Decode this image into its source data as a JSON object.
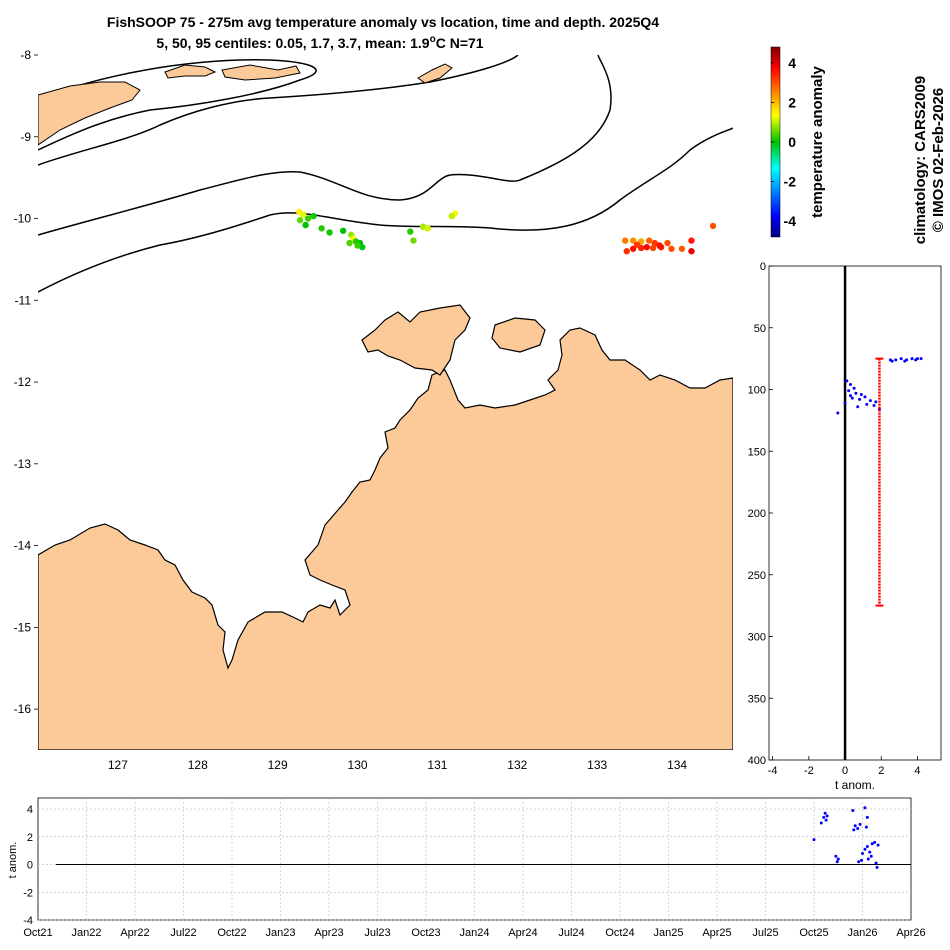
{
  "title_line1": "FishSOOP 75 - 275m avg temperature anomaly vs location, time and depth. 2025Q4",
  "title_line2_prefix": "5, 50, 95 centiles: 0.05, 1.7, 3.7, mean: 1.9",
  "title_line2_sup": "o",
  "title_line2_suffix": "C N=71",
  "side_text_1": "climatology: CARS2009",
  "side_text_2": "© IMOS 02-Feb-2026",
  "colorbar": {
    "label": "temperature anomaly",
    "ticks": [
      "4",
      "2",
      "0",
      "-2",
      "-4"
    ],
    "range": [
      -4.8,
      4.8
    ]
  },
  "map": {
    "lon_range": [
      126.0,
      134.7
    ],
    "lat_range": [
      -16.5,
      -8.0
    ],
    "lon_ticks": [
      "127",
      "128",
      "129",
      "130",
      "131",
      "132",
      "133",
      "134"
    ],
    "lat_ticks": [
      "-8",
      "-9",
      "-10",
      "-11",
      "-12",
      "-13",
      "-14",
      "-15",
      "-16"
    ],
    "land_color": "#fbca98",
    "points": [
      {
        "lon": 129.27,
        "lat": -9.92,
        "anom": 1.5
      },
      {
        "lon": 129.32,
        "lat": -9.95,
        "anom": 1.2
      },
      {
        "lon": 129.38,
        "lat": -10.0,
        "anom": 0.3
      },
      {
        "lon": 129.28,
        "lat": -10.02,
        "anom": 0.5
      },
      {
        "lon": 129.45,
        "lat": -9.97,
        "anom": 0.1
      },
      {
        "lon": 129.35,
        "lat": -10.08,
        "anom": 0.0
      },
      {
        "lon": 129.55,
        "lat": -10.12,
        "anom": 0.2
      },
      {
        "lon": 129.65,
        "lat": -10.17,
        "anom": 0.1
      },
      {
        "lon": 129.82,
        "lat": -10.15,
        "anom": 0.0
      },
      {
        "lon": 129.92,
        "lat": -10.2,
        "anom": 0.8
      },
      {
        "lon": 129.95,
        "lat": -10.25,
        "anom": 1.3
      },
      {
        "lon": 129.98,
        "lat": -10.28,
        "anom": 0.2
      },
      {
        "lon": 130.03,
        "lat": -10.3,
        "anom": 0.0
      },
      {
        "lon": 129.9,
        "lat": -10.3,
        "anom": 0.4
      },
      {
        "lon": 130.06,
        "lat": -10.35,
        "anom": -0.1
      },
      {
        "lon": 130.0,
        "lat": -10.33,
        "anom": 0.3
      },
      {
        "lon": 130.66,
        "lat": -10.16,
        "anom": 0.2
      },
      {
        "lon": 130.82,
        "lat": -10.1,
        "anom": 0.9
      },
      {
        "lon": 130.88,
        "lat": -10.12,
        "anom": 1.1
      },
      {
        "lon": 130.7,
        "lat": -10.27,
        "anom": 0.6
      },
      {
        "lon": 131.22,
        "lat": -9.94,
        "anom": 1.3
      },
      {
        "lon": 131.18,
        "lat": -9.97,
        "anom": 1.0
      },
      {
        "lon": 133.35,
        "lat": -10.27,
        "anom": 2.6
      },
      {
        "lon": 133.45,
        "lat": -10.27,
        "anom": 2.4
      },
      {
        "lon": 133.55,
        "lat": -10.28,
        "anom": 2.2
      },
      {
        "lon": 133.65,
        "lat": -10.27,
        "anom": 2.8
      },
      {
        "lon": 133.72,
        "lat": -10.3,
        "anom": 3.2
      },
      {
        "lon": 133.88,
        "lat": -10.3,
        "anom": 3.0
      },
      {
        "lon": 134.18,
        "lat": -10.27,
        "anom": 3.5
      },
      {
        "lon": 134.45,
        "lat": -10.09,
        "anom": 3.0
      },
      {
        "lon": 133.37,
        "lat": -10.4,
        "anom": 3.3
      },
      {
        "lon": 133.45,
        "lat": -10.37,
        "anom": 3.6
      },
      {
        "lon": 133.55,
        "lat": -10.36,
        "anom": 3.4
      },
      {
        "lon": 133.62,
        "lat": -10.35,
        "anom": 3.7
      },
      {
        "lon": 133.7,
        "lat": -10.36,
        "anom": 3.1
      },
      {
        "lon": 133.8,
        "lat": -10.35,
        "anom": 3.5
      },
      {
        "lon": 133.93,
        "lat": -10.37,
        "anom": 3.0
      },
      {
        "lon": 134.06,
        "lat": -10.37,
        "anom": 2.9
      },
      {
        "lon": 134.18,
        "lat": -10.4,
        "anom": 3.9
      },
      {
        "lon": 133.5,
        "lat": -10.32,
        "anom": 3.2
      },
      {
        "lon": 133.78,
        "lat": -10.33,
        "anom": 3.6
      }
    ]
  },
  "depth_plot": {
    "xlabel": "t anom.",
    "x_ticks": [
      "-4",
      "-2",
      "0",
      "2",
      "4"
    ],
    "y_ticks": [
      "0",
      "50",
      "100",
      "150",
      "200",
      "250",
      "300",
      "350",
      "400"
    ],
    "xlim": [
      -4.2,
      5.3
    ],
    "ylim": [
      0,
      400
    ],
    "mean_anomaly": 1.9,
    "mean_depth_range": [
      75,
      275
    ],
    "points": [
      {
        "anom": 2.5,
        "depth": 76
      },
      {
        "anom": 2.8,
        "depth": 76
      },
      {
        "anom": 3.1,
        "depth": 75
      },
      {
        "anom": 3.4,
        "depth": 76
      },
      {
        "anom": 3.7,
        "depth": 75
      },
      {
        "anom": 4.0,
        "depth": 75
      },
      {
        "anom": 4.2,
        "depth": 75
      },
      {
        "anom": 2.6,
        "depth": 77
      },
      {
        "anom": 3.3,
        "depth": 77
      },
      {
        "anom": 3.9,
        "depth": 76
      },
      {
        "anom": 0.1,
        "depth": 93
      },
      {
        "anom": 0.3,
        "depth": 96
      },
      {
        "anom": 0.5,
        "depth": 99
      },
      {
        "anom": 0.2,
        "depth": 101
      },
      {
        "anom": 0.6,
        "depth": 103
      },
      {
        "anom": 0.9,
        "depth": 104
      },
      {
        "anom": 1.1,
        "depth": 106
      },
      {
        "anom": 0.4,
        "depth": 107
      },
      {
        "anom": 0.8,
        "depth": 108
      },
      {
        "anom": 1.4,
        "depth": 109
      },
      {
        "anom": 1.7,
        "depth": 110
      },
      {
        "anom": 0.0,
        "depth": 111
      },
      {
        "anom": 1.2,
        "depth": 112
      },
      {
        "anom": 1.6,
        "depth": 113
      },
      {
        "anom": 0.7,
        "depth": 114
      },
      {
        "anom": 1.9,
        "depth": 116
      },
      {
        "anom": -0.4,
        "depth": 119
      },
      {
        "anom": 0.3,
        "depth": 105
      }
    ]
  },
  "time_series": {
    "ylabel": "t anom.",
    "y_ticks": [
      "4",
      "2",
      "0",
      "-2",
      "-4"
    ],
    "x_ticks": [
      "Oct21",
      "Jan22",
      "Apr22",
      "Jul22",
      "Oct22",
      "Jan23",
      "Apr23",
      "Jul23",
      "Oct23",
      "Jan24",
      "Apr24",
      "Jul24",
      "Oct24",
      "Jan25",
      "Apr25",
      "Jul25",
      "Oct25",
      "Jan26",
      "Apr26"
    ],
    "ylim": [
      -4,
      4.8
    ],
    "points": [
      {
        "t": 16.0,
        "v": 1.8
      },
      {
        "t": 16.15,
        "v": 3.0
      },
      {
        "t": 16.2,
        "v": 3.4
      },
      {
        "t": 16.23,
        "v": 3.7
      },
      {
        "t": 16.25,
        "v": 3.2
      },
      {
        "t": 16.27,
        "v": 3.5
      },
      {
        "t": 16.45,
        "v": 0.6
      },
      {
        "t": 16.48,
        "v": 0.2
      },
      {
        "t": 16.5,
        "v": 0.4
      },
      {
        "t": 16.8,
        "v": 3.9
      },
      {
        "t": 16.82,
        "v": 2.5
      },
      {
        "t": 16.85,
        "v": 2.8
      },
      {
        "t": 16.9,
        "v": 2.6
      },
      {
        "t": 16.95,
        "v": 2.9
      },
      {
        "t": 17.05,
        "v": 4.1
      },
      {
        "t": 17.1,
        "v": 3.4
      },
      {
        "t": 17.08,
        "v": 2.7
      },
      {
        "t": 16.98,
        "v": 0.3
      },
      {
        "t": 17.0,
        "v": 0.8
      },
      {
        "t": 17.05,
        "v": 1.1
      },
      {
        "t": 17.1,
        "v": 1.3
      },
      {
        "t": 17.15,
        "v": 0.9
      },
      {
        "t": 17.2,
        "v": 1.5
      },
      {
        "t": 17.25,
        "v": 1.6
      },
      {
        "t": 17.3,
        "v": -0.2
      },
      {
        "t": 17.28,
        "v": 0.1
      },
      {
        "t": 17.32,
        "v": 1.4
      },
      {
        "t": 17.12,
        "v": 0.4
      },
      {
        "t": 17.18,
        "v": 0.6
      },
      {
        "t": 16.92,
        "v": 0.2
      }
    ]
  }
}
